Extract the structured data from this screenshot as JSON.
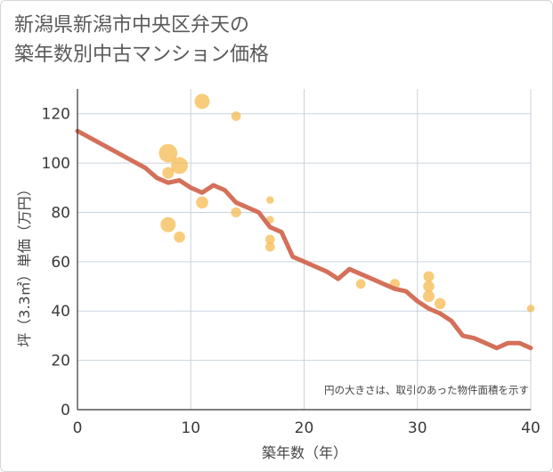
{
  "chart_data": {
    "type": "scatter",
    "title_lines": [
      "新潟県新潟市中央区弁天の",
      "築年数別中古マンション価格"
    ],
    "xlabel": "築年数（年）",
    "ylabel": "坪（3.3㎡）単価（万円）",
    "note": "円の大きさは、取引のあった物件面積を示す",
    "xlim": [
      0,
      40
    ],
    "ylim": [
      0,
      130
    ],
    "x_ticks": [
      0,
      10,
      20,
      30,
      40
    ],
    "y_ticks": [
      0,
      20,
      40,
      60,
      80,
      100,
      120
    ],
    "grid": true,
    "bubble_color": "#f5b94b",
    "line_color": "#d4705a",
    "scatter": [
      {
        "x": 8,
        "y": 104,
        "size": 3
      },
      {
        "x": 9,
        "y": 99,
        "size": 2.5
      },
      {
        "x": 8,
        "y": 96,
        "size": 1.2
      },
      {
        "x": 8,
        "y": 75,
        "size": 2
      },
      {
        "x": 9,
        "y": 70,
        "size": 1.1
      },
      {
        "x": 11,
        "y": 125,
        "size": 2
      },
      {
        "x": 11,
        "y": 84,
        "size": 1.3
      },
      {
        "x": 14,
        "y": 119,
        "size": 0.8
      },
      {
        "x": 14,
        "y": 80,
        "size": 0.9
      },
      {
        "x": 17,
        "y": 85,
        "size": 0.5
      },
      {
        "x": 17,
        "y": 77,
        "size": 0.5
      },
      {
        "x": 17,
        "y": 69,
        "size": 0.8
      },
      {
        "x": 17,
        "y": 66,
        "size": 0.8
      },
      {
        "x": 25,
        "y": 51,
        "size": 0.8
      },
      {
        "x": 28,
        "y": 51,
        "size": 0.9
      },
      {
        "x": 31,
        "y": 54,
        "size": 1.0
      },
      {
        "x": 31,
        "y": 50,
        "size": 1.1
      },
      {
        "x": 31,
        "y": 46,
        "size": 1.2
      },
      {
        "x": 32,
        "y": 43,
        "size": 1.1
      },
      {
        "x": 40,
        "y": 41,
        "size": 0.5
      }
    ],
    "line": {
      "x": [
        0,
        2,
        4,
        6,
        7,
        8,
        9,
        10,
        11,
        12,
        13,
        14,
        15,
        16,
        17,
        18,
        19,
        20,
        21,
        22,
        23,
        24,
        25,
        26,
        27,
        28,
        29,
        30,
        31,
        32,
        33,
        34,
        35,
        36,
        37,
        38,
        39,
        40
      ],
      "y": [
        113,
        108,
        103,
        98,
        94,
        92,
        93,
        90,
        88,
        91,
        89,
        84,
        82,
        80,
        74,
        72,
        62,
        60,
        58,
        56,
        53,
        57,
        55,
        53,
        51,
        49,
        48,
        44,
        41,
        39,
        36,
        30,
        29,
        27,
        25,
        27,
        27,
        25
      ]
    }
  }
}
